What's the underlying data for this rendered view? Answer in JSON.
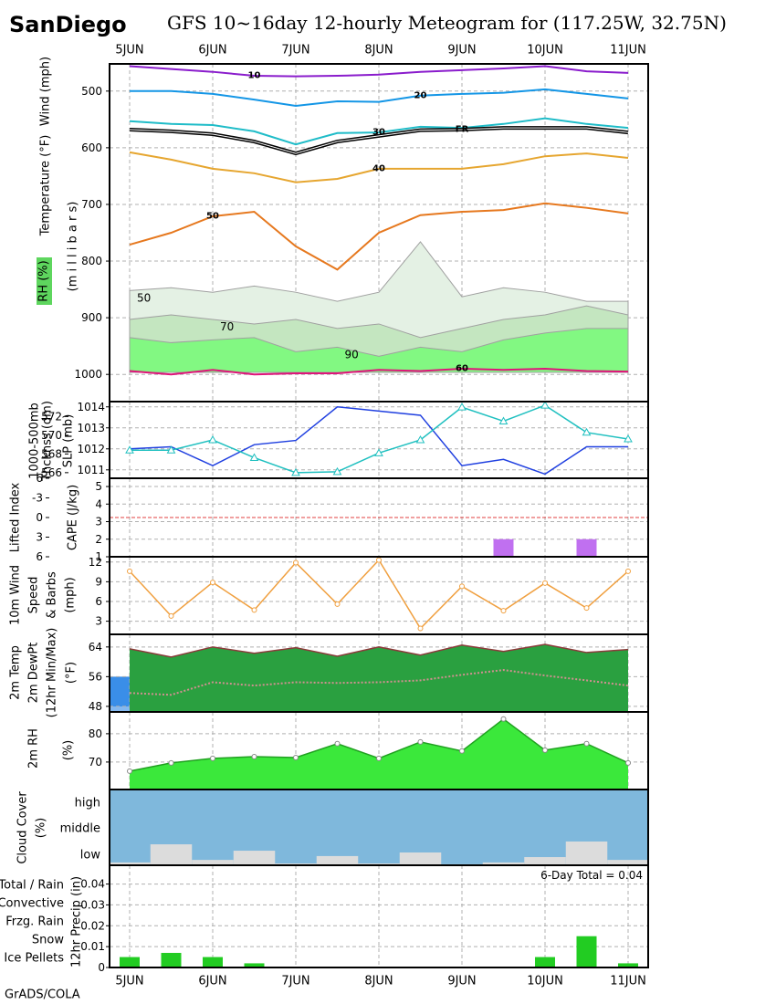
{
  "station": "SanDiego",
  "credit": "GrADS/COLA",
  "chart_data": [
    {
      "type": "contour",
      "title": "GFS 10~16day 12-hourly Meteogram for (117.25W, 32.75N)",
      "ylabel": [
        "Wind (mph)",
        "Temperature (°F)",
        "RH (%)",
        "(m i l l i b a r s)"
      ],
      "categories": [
        "5JUN",
        null,
        "6JUN",
        null,
        "7JUN",
        null,
        "8JUN",
        null,
        "9JUN",
        null,
        "10JUN",
        null,
        "11JUN"
      ],
      "ylim": [
        1048,
        452
      ],
      "yticks": [
        500,
        600,
        700,
        800,
        900,
        1000
      ],
      "grid": true,
      "areas": [
        {
          "name": "50",
          "color": "#e4f1e4",
          "values": [
            852,
            847,
            855,
            844,
            855,
            871,
            855,
            766,
            863,
            847,
            855,
            871,
            871
          ]
        },
        {
          "name": "70",
          "color": "#c4e6c0",
          "values": [
            903,
            895,
            903,
            911,
            903,
            919,
            911,
            935,
            919,
            903,
            895,
            879,
            895
          ]
        },
        {
          "name": "90",
          "color": "#82f882",
          "values": [
            935,
            944,
            939,
            935,
            960,
            952,
            968,
            952,
            960,
            939,
            927,
            919,
            919
          ]
        }
      ],
      "series": [
        {
          "name": "10",
          "color": "#8a1ccc",
          "values": [
            456,
            461,
            466,
            473,
            474,
            473,
            471,
            466,
            463,
            460,
            456,
            465,
            468
          ]
        },
        {
          "name": "20",
          "color": "#1496e6",
          "values": [
            500,
            500,
            505,
            515,
            526,
            518,
            519,
            508,
            505,
            503,
            497,
            505,
            513
          ]
        },
        {
          "name": "30",
          "color": "#1fbcc8",
          "values": [
            553,
            558,
            560,
            571,
            594,
            574,
            573,
            563,
            565,
            558,
            548,
            558,
            565
          ]
        },
        {
          "name": "FR",
          "color": "#000000",
          "values": [
            568,
            571,
            576,
            589,
            610,
            589,
            579,
            569,
            568,
            565,
            565,
            565,
            573
          ]
        },
        {
          "name": "40",
          "color": "#e6a630",
          "values": [
            608,
            621,
            637,
            645,
            661,
            655,
            637,
            637,
            637,
            629,
            615,
            610,
            618
          ]
        },
        {
          "name": "50",
          "color": "#e6781e",
          "values": [
            771,
            750,
            721,
            713,
            774,
            815,
            750,
            719,
            713,
            710,
            698,
            706,
            716
          ]
        },
        {
          "name": "60",
          "color": "#e0147a",
          "values": [
            994,
            1000,
            992,
            1000,
            998,
            998,
            992,
            994,
            990,
            992,
            990,
            994,
            995
          ]
        }
      ]
    },
    {
      "type": "line",
      "ylabel": [
        "1000-500mb",
        "Thcknss (dm)",
        "SLP (mb)"
      ],
      "ylim": [
        1010.6,
        1014.25
      ],
      "yticks": [
        1011,
        1012,
        1013,
        1014
      ],
      "y2lim": [
        565.4,
        573.6
      ],
      "y2ticks": [
        566,
        568,
        570,
        572
      ],
      "grid": true,
      "series": [
        {
          "color": "#2040e0",
          "values": [
            1012.0,
            1012.1,
            1011.2,
            1012.2,
            1012.4,
            1014.0,
            1013.8,
            1013.6,
            1011.2,
            1011.5,
            1010.8,
            1012.1,
            1012.1
          ]
        },
        {
          "color": "#20c0c0",
          "axis": "y2",
          "marker": "triangle",
          "values": [
            568.4,
            568.4,
            569.5,
            567.6,
            566.0,
            566.1,
            568.1,
            569.5,
            573.0,
            571.5,
            573.2,
            570.3,
            569.6
          ]
        }
      ]
    },
    {
      "type": "bar",
      "ylabel": [
        "Lifted Index",
        "CAPE (J/kg)"
      ],
      "ylim": [
        1,
        5.47
      ],
      "yticks": [
        1,
        2,
        3,
        4,
        5
      ],
      "y2lim": [
        6,
        -6
      ],
      "y2ticks": [
        {
          "value": -6,
          "label": "6"
        },
        -3,
        0,
        3,
        6
      ],
      "y2_reference": 0,
      "reference_color": "#e04040",
      "grid": true,
      "series": [
        {
          "color": "#c070f0",
          "values": [
            0,
            0,
            0,
            0,
            0,
            0,
            0,
            0,
            0,
            2,
            0,
            2,
            0
          ]
        }
      ]
    },
    {
      "type": "line",
      "ylabel": [
        "10m Wind",
        "Speed",
        "& Barbs",
        "(mph)"
      ],
      "ylim": [
        1.0,
        12.8
      ],
      "yticks": [
        3,
        6,
        9,
        12
      ],
      "grid": true,
      "series": [
        {
          "color": "#f0a040",
          "marker": "circle",
          "values": [
            10.6,
            3.8,
            8.9,
            4.7,
            11.9,
            5.6,
            12.3,
            1.9,
            8.3,
            4.6,
            8.8,
            5.0,
            10.6
          ]
        }
      ]
    },
    {
      "type": "area",
      "ylabel": [
        "(12hr Min/Max)",
        "(°F)"
      ],
      "ylim": [
        46.5,
        67.4
      ],
      "yticks": [
        48,
        56,
        64
      ],
      "grid": true,
      "band_color": "#3a8ee8",
      "band_base_color": "#84b8f0",
      "series": [
        {
          "name": "2m Temp",
          "color": "#2aa040",
          "line_color": "#8b3a3a",
          "values": [
            63.5,
            61.3,
            64.0,
            62.3,
            63.8,
            61.5,
            64.0,
            61.8,
            64.5,
            62.8,
            64.7,
            62.5,
            63.3
          ]
        },
        {
          "name": "2m DewPt",
          "color": "#d09090",
          "style": "dotted",
          "values": [
            51.6,
            51.1,
            54.5,
            53.6,
            54.5,
            54.3,
            54.5,
            55.0,
            56.5,
            57.8,
            56.3,
            55.0,
            53.6
          ]
        }
      ]
    },
    {
      "type": "area",
      "ylabel": [
        "(%)"
      ],
      "ylim": [
        60.3,
        87.7
      ],
      "yticks": [
        70,
        80
      ],
      "grid": true,
      "series": [
        {
          "name": "2m RH",
          "color": "#3be83b",
          "line_color": "#20a020",
          "marker": "circle",
          "values": [
            66.8,
            69.7,
            71.3,
            71.9,
            71.6,
            76.5,
            71.3,
            77.1,
            73.9,
            85.2,
            74.2,
            76.5,
            69.7
          ]
        }
      ]
    },
    {
      "type": "cloud",
      "ylabel": [
        "Cloud Cover",
        "(%)"
      ],
      "levels": [
        "high",
        "middle",
        "low"
      ],
      "background": "#7fb8dc",
      "ylim": [
        0,
        100
      ],
      "series": [
        {
          "color": "#dcdcdc",
          "values": [
            11,
            82,
            21,
            57,
            7,
            36,
            7,
            50,
            4,
            11,
            32,
            93,
            21
          ]
        }
      ]
    },
    {
      "type": "bar",
      "ylabel": [
        "12hr Precip (in)"
      ],
      "annotation": "6-Day Total = 0.04",
      "categories": [
        "5JUN",
        null,
        "6JUN",
        null,
        "7JUN",
        null,
        "8JUN",
        null,
        "9JUN",
        null,
        "10JUN",
        null,
        "11JUN"
      ],
      "ylim": [
        0,
        0.049
      ],
      "yticks": [
        0,
        0.01,
        0.02,
        0.03,
        0.04
      ],
      "grid": true,
      "series": [
        {
          "name": "Total / Rain",
          "color": "#22cc22",
          "values": [
            0.005,
            0.007,
            0.005,
            0.002,
            0,
            0,
            0,
            0,
            0,
            0,
            0.005,
            0.015,
            0.002
          ]
        }
      ],
      "legend": [
        {
          "name": "Convective",
          "color": "#e03030"
        },
        {
          "name": "Frzg. Rain",
          "color": "#f08a30"
        },
        {
          "name": "Snow",
          "color": "#4040ff"
        },
        {
          "name": "Ice Pellets",
          "color": "#20c8c8"
        }
      ]
    }
  ]
}
